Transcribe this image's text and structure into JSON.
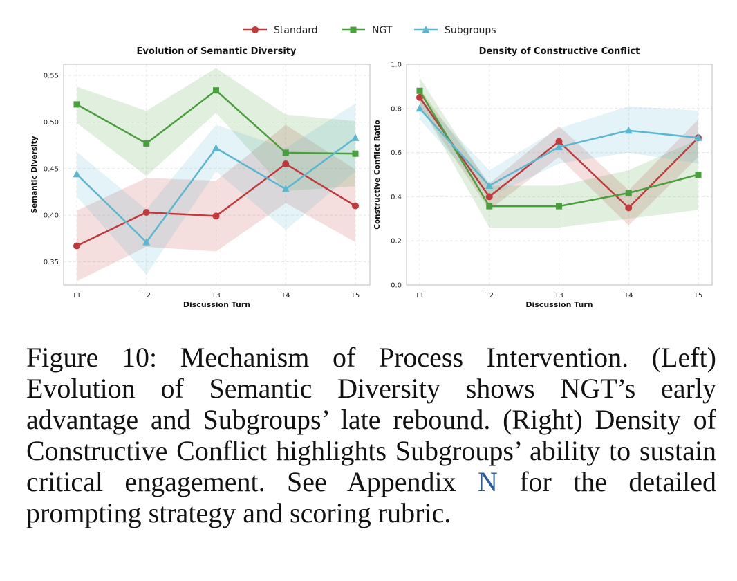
{
  "legend": [
    "Standard",
    "NGT",
    "Subgroups"
  ],
  "colors": {
    "Standard": "#c0393b",
    "NGT": "#4a9e3c",
    "Subgroups": "#5bb7cf"
  },
  "chart_data": [
    {
      "type": "line",
      "title": "Evolution of Semantic Diversity",
      "xlabel": "Discussion Turn",
      "ylabel": "Semantic Diversity",
      "categories": [
        "T1",
        "T2",
        "T3",
        "T4",
        "T5"
      ],
      "ylim": [
        0.325,
        0.562
      ],
      "yticks": [
        0.35,
        0.4,
        0.45,
        0.5,
        0.55
      ],
      "ytick_labels": [
        "0.35",
        "0.40",
        "0.45",
        "0.50",
        "0.55"
      ],
      "grid": true,
      "series": [
        {
          "name": "Standard",
          "marker": "circle",
          "values": [
            0.367,
            0.403,
            0.399,
            0.455,
            0.41
          ],
          "lower": [
            0.329,
            0.366,
            0.361,
            0.413,
            0.371
          ],
          "upper": [
            0.405,
            0.44,
            0.437,
            0.497,
            0.449
          ]
        },
        {
          "name": "NGT",
          "marker": "square",
          "values": [
            0.519,
            0.477,
            0.534,
            0.467,
            0.466
          ],
          "lower": [
            0.499,
            0.442,
            0.51,
            0.426,
            0.431
          ],
          "upper": [
            0.538,
            0.512,
            0.558,
            0.508,
            0.501
          ]
        },
        {
          "name": "Subgroups",
          "marker": "triangle",
          "values": [
            0.444,
            0.371,
            0.472,
            0.428,
            0.483
          ],
          "lower": [
            0.42,
            0.336,
            0.447,
            0.384,
            0.447
          ],
          "upper": [
            0.468,
            0.406,
            0.497,
            0.472,
            0.52
          ]
        }
      ]
    },
    {
      "type": "line",
      "title": "Density of Constructive Conflict",
      "xlabel": "Discussion Turn",
      "ylabel": "Constructive Conflict Ratio",
      "categories": [
        "T1",
        "T2",
        "T3",
        "T4",
        "T5"
      ],
      "ylim": [
        0.0,
        1.0
      ],
      "yticks": [
        0.0,
        0.2,
        0.4,
        0.6,
        0.8,
        1.0
      ],
      "ytick_labels": [
        "0.0",
        "0.2",
        "0.4",
        "0.6",
        "0.8",
        "1.0"
      ],
      "grid": true,
      "series": [
        {
          "name": "Standard",
          "marker": "circle",
          "values": [
            0.85,
            0.4,
            0.65,
            0.35,
            0.667
          ],
          "lower": [
            0.81,
            0.34,
            0.58,
            0.27,
            0.58
          ],
          "upper": [
            0.89,
            0.46,
            0.72,
            0.43,
            0.75
          ]
        },
        {
          "name": "NGT",
          "marker": "square",
          "values": [
            0.88,
            0.357,
            0.357,
            0.417,
            0.5
          ],
          "lower": [
            0.82,
            0.26,
            0.26,
            0.3,
            0.34
          ],
          "upper": [
            0.94,
            0.45,
            0.45,
            0.52,
            0.66
          ]
        },
        {
          "name": "Subgroups",
          "marker": "triangle",
          "values": [
            0.8,
            0.45,
            0.625,
            0.7,
            0.667
          ],
          "lower": [
            0.75,
            0.4,
            0.55,
            0.6,
            0.55
          ],
          "upper": [
            0.85,
            0.52,
            0.71,
            0.81,
            0.79
          ]
        }
      ]
    }
  ],
  "caption": {
    "text_before": "Figure 10: Mechanism of Process Intervention. (Left) Evolution of Semantic Diversity shows NGT’s early advantage and Subgroups’ late rebound. (Right) Density of Constructive Conflict highlights Subgroups’ ability to sustain critical engagement. See Appendix ",
    "link": "N",
    "text_after": " for the detailed prompting strategy and scoring rubric."
  }
}
